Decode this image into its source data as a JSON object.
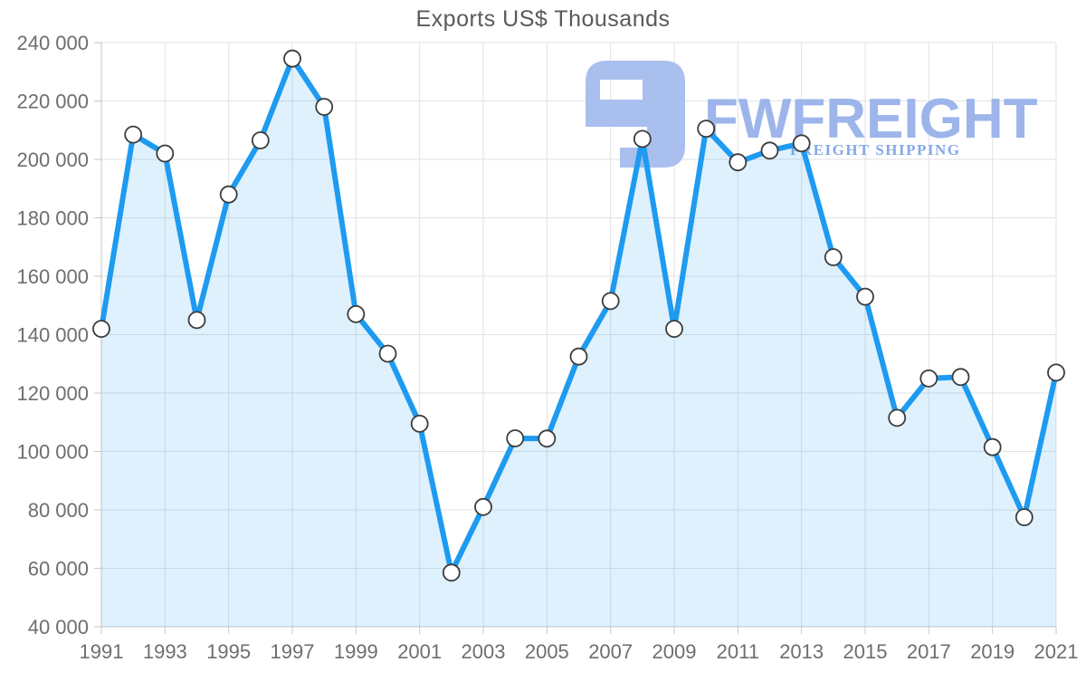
{
  "page": {
    "background": "#ffffff"
  },
  "watermark": {
    "brand": "FWFREIGHT",
    "subtitle": "FREIGHT SHIPPING",
    "logo_color": "#a9bfee",
    "brand_color": "#9db5eb",
    "subtitle_color": "#85a8e9"
  },
  "chart_data": {
    "type": "area",
    "title": "Exports US$ Thousands",
    "xlabel": "",
    "ylabel": "",
    "legend": "none",
    "grid": true,
    "x": [
      1991,
      1992,
      1993,
      1994,
      1995,
      1996,
      1997,
      1998,
      1999,
      2000,
      2001,
      2002,
      2003,
      2004,
      2005,
      2006,
      2007,
      2008,
      2009,
      2010,
      2011,
      2012,
      2013,
      2014,
      2015,
      2016,
      2017,
      2018,
      2019,
      2020,
      2021
    ],
    "values": [
      142000,
      208500,
      202000,
      145000,
      188000,
      206500,
      234500,
      218000,
      147000,
      133500,
      109500,
      58500,
      81000,
      104500,
      104400,
      132500,
      151500,
      207000,
      142000,
      210500,
      199000,
      203000,
      205500,
      166500,
      153000,
      111500,
      125000,
      125500,
      101500,
      77500,
      127000
    ],
    "ylim": [
      40000,
      240000
    ],
    "y_ticks": {
      "values": [
        240000,
        220000,
        200000,
        180000,
        160000,
        140000,
        120000,
        100000,
        80000,
        60000,
        40000
      ],
      "labels": [
        "240 000",
        "220 000",
        "200 000",
        "180 000",
        "160 000",
        "140 000",
        "120 000",
        "100 000",
        "80 000",
        "60 000",
        "40 000"
      ]
    },
    "x_ticks": {
      "values": [
        1991,
        1993,
        1995,
        1997,
        1999,
        2001,
        2003,
        2005,
        2007,
        2009,
        2011,
        2013,
        2015,
        2017,
        2019,
        2021
      ],
      "labels": [
        "1991",
        "1993",
        "1995",
        "1997",
        "1999",
        "2001",
        "2003",
        "2005",
        "2007",
        "2009",
        "2011",
        "2013",
        "2015",
        "2017",
        "2019",
        "2021"
      ]
    },
    "line_color": "#1e9bf0",
    "area_color": "rgba(30,155,240,0.14)",
    "marker": {
      "fill": "#ffffff",
      "stroke": "#3c3c3c",
      "radius": 9
    },
    "grid_color": "#e2e2e2",
    "axis_line_color": "#c6c6c6",
    "axis_label_color": "#6e6e6e",
    "title_color": "#5a5a5a"
  }
}
